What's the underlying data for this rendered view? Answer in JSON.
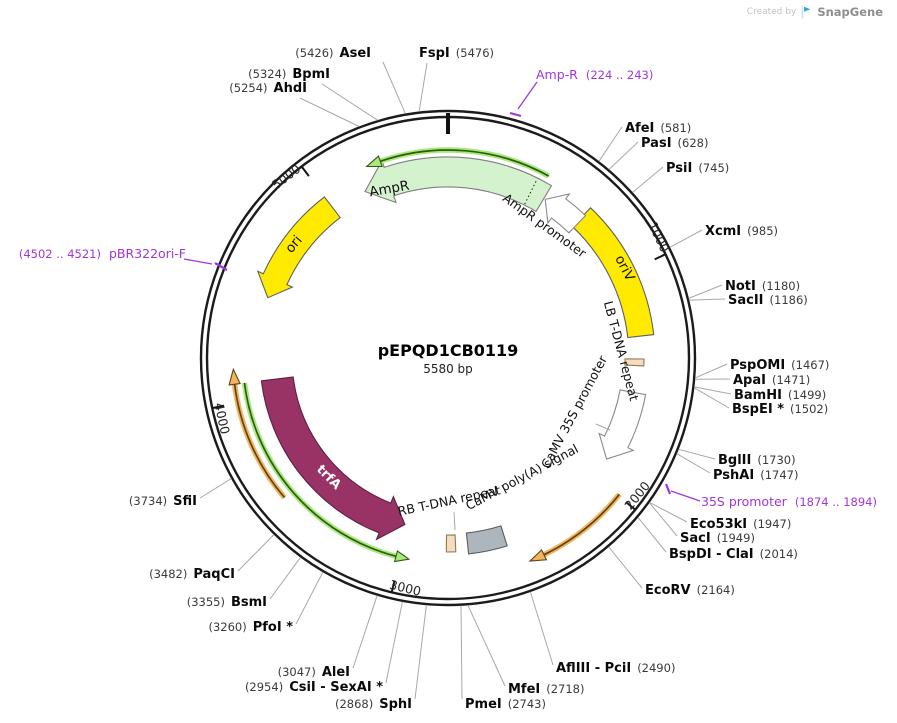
{
  "watermark": {
    "created_by": "Created by",
    "brand": "SnapGene"
  },
  "plasmid": {
    "name": "pEPQD1CB0119",
    "size_label": "5580 bp"
  },
  "tick_labels": [
    "1000",
    "2000",
    "3000",
    "4000",
    "5000"
  ],
  "colors": {
    "backbone": "#1b1b1b",
    "leader_line": "#a8a8a8",
    "tick": "#161616",
    "primer": "#a335dd",
    "orf_green_halo": "#a9e87f",
    "orf_green_core": "#2f5c0e",
    "orf_orange_halo": "#f4b45a",
    "orf_orange_core": "#5a4420"
  },
  "features": [
    {
      "id": "ampr",
      "label": "AmpR",
      "color": "#d5f2cf"
    },
    {
      "id": "ampr-promoter",
      "label": "AmpR promoter",
      "color": "#ffffff"
    },
    {
      "id": "oriv",
      "label": "oriV",
      "color": "#ffea00"
    },
    {
      "id": "lb-tdna-repeat",
      "label": "LB T-DNA repeat",
      "color": "#f5dcc0"
    },
    {
      "id": "camv-35s-promoter",
      "label": "CaMV 35S promoter",
      "color": "#ffffff"
    },
    {
      "id": "camv-polya-signal",
      "label": "CaMV poly(A) signal",
      "color": "#aeb6bd"
    },
    {
      "id": "rb-tdna-repeat",
      "label": "RB T-DNA repeat",
      "color": "#f5dcc0"
    },
    {
      "id": "trfa",
      "label": "trfA",
      "color": "#993366"
    },
    {
      "id": "ori",
      "label": "ori",
      "color": "#ffea00"
    }
  ],
  "primers": [
    {
      "id": "amp-r",
      "name": "Amp-R",
      "range": "(224 .. 243)"
    },
    {
      "id": "35s-promoter",
      "name": "35S promoter",
      "range": "(1874 .. 1894)"
    },
    {
      "id": "pbr322ori-f",
      "name": "pBR322ori-F",
      "range": "(4502 .. 4521)"
    }
  ],
  "enzymes": [
    {
      "name": "AfeI",
      "pos": "(581)"
    },
    {
      "name": "PasI",
      "pos": "(628)"
    },
    {
      "name": "PsiI",
      "pos": "(745)"
    },
    {
      "name": "XcmI",
      "pos": "(985)"
    },
    {
      "name": "NotI",
      "pos": "(1180)"
    },
    {
      "name": "SacII",
      "pos": "(1186)"
    },
    {
      "name": "PspOMI",
      "pos": "(1467)"
    },
    {
      "name": "ApaI",
      "pos": "(1471)"
    },
    {
      "name": "BamHI",
      "pos": "(1499)"
    },
    {
      "name": "BspEI *",
      "pos": "(1502)"
    },
    {
      "name": "BglII",
      "pos": "(1730)"
    },
    {
      "name": "PshAI",
      "pos": "(1747)"
    },
    {
      "name": "Eco53kI",
      "pos": "(1947)"
    },
    {
      "name": "SacI",
      "pos": "(1949)"
    },
    {
      "name": "BspDI - ClaI",
      "pos": "(2014)"
    },
    {
      "name": "EcoRV",
      "pos": "(2164)"
    },
    {
      "name": "AflIII - PciI",
      "pos": "(2490)"
    },
    {
      "name": "MfeI",
      "pos": "(2718)"
    },
    {
      "name": "PmeI",
      "pos": "(2743)"
    },
    {
      "name": "SphI",
      "pos": "(2868)"
    },
    {
      "name": "CsiI - SexAI *",
      "pos": "(2954)"
    },
    {
      "name": "AleI",
      "pos": "(3047)"
    },
    {
      "name": "PfoI *",
      "pos": "(3260)"
    },
    {
      "name": "BsmI",
      "pos": "(3355)"
    },
    {
      "name": "PaqCI",
      "pos": "(3482)"
    },
    {
      "name": "SfiI",
      "pos": "(3734)"
    },
    {
      "name": "AhdI",
      "pos": "(5254)"
    },
    {
      "name": "BpmI",
      "pos": "(5324)"
    },
    {
      "name": "AseI",
      "pos": "(5426)"
    },
    {
      "name": "FspI",
      "pos": "(5476)"
    }
  ]
}
